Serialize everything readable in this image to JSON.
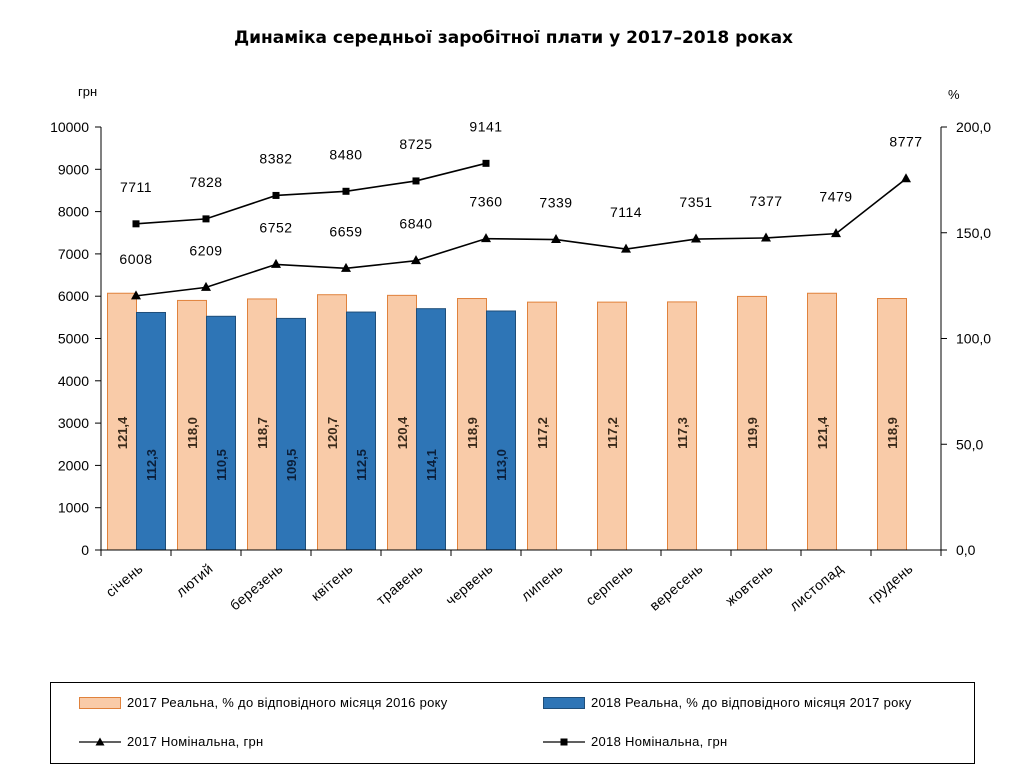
{
  "chart_data": {
    "type": "bar",
    "title": "Динаміка середньої заробітної плати у 2017–2018 роках",
    "y_left_unit": "грн",
    "y_right_unit": "%",
    "y_left_lim": [
      0,
      10000
    ],
    "y_left_ticks": [
      "0",
      "1000",
      "2000",
      "3000",
      "4000",
      "5000",
      "6000",
      "7000",
      "8000",
      "9000",
      "10000"
    ],
    "y_right_lim": [
      0,
      200
    ],
    "y_right_ticks": [
      "0,0",
      "50,0",
      "100,0",
      "150,0",
      "200,0"
    ],
    "categories": [
      "січень",
      "лютий",
      "березень",
      "квітень",
      "травень",
      "червень",
      "липень",
      "серпень",
      "вересень",
      "жовтень",
      "листопад",
      "грудень"
    ],
    "bar_series": [
      {
        "name": "2017 Реальна, % до відповідного місяця 2016 року",
        "color": "#F9CBA8",
        "stroke": "#E0823C",
        "values": [
          121.4,
          118.0,
          118.7,
          120.7,
          120.4,
          118.9,
          117.2,
          117.2,
          117.3,
          119.9,
          121.4,
          118.9
        ],
        "labels": [
          "121,4",
          "118,0",
          "118,7",
          "120,7",
          "120,4",
          "118,9",
          "117,2",
          "117,2",
          "117,3",
          "119,9",
          "121,4",
          "118,9"
        ]
      },
      {
        "name": "2018 Реальна, % до відповідного місяця 2017 року",
        "color": "#2E75B6",
        "stroke": "#1F4E79",
        "values": [
          112.3,
          110.5,
          109.5,
          112.5,
          114.1,
          113.0
        ],
        "labels": [
          "112,3",
          "110,5",
          "109,5",
          "112,5",
          "114,1",
          "113,0"
        ]
      }
    ],
    "line_series": [
      {
        "name": "2017 Номінальна, грн",
        "marker": "triangle",
        "color": "#000000",
        "values": [
          6008,
          6209,
          6752,
          6659,
          6840,
          7360,
          7339,
          7114,
          7351,
          7377,
          7479,
          8777
        ],
        "labels": [
          "6008",
          "6209",
          "6752",
          "6659",
          "6840",
          "7360",
          "7339",
          "7114",
          "7351",
          "7377",
          "7479",
          "8777"
        ]
      },
      {
        "name": "2018 Номінальна, грн",
        "marker": "square",
        "color": "#000000",
        "values": [
          7711,
          7828,
          8382,
          8480,
          8725,
          9141
        ],
        "labels": [
          "7711",
          "7828",
          "8382",
          "8480",
          "8725",
          "9141"
        ]
      }
    ],
    "grid": false,
    "legend_position": "bottom"
  }
}
